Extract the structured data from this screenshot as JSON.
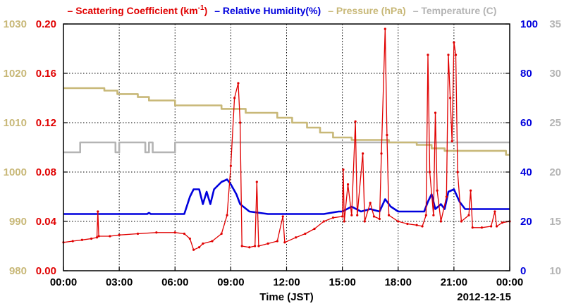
{
  "chart_data": {
    "type": "line",
    "xlabel": "Time (JST)",
    "date_label": "2012-12-15",
    "x_ticks": [
      "00:00",
      "03:00",
      "06:00",
      "09:00",
      "12:00",
      "15:00",
      "18:00",
      "21:00",
      "00:00"
    ],
    "x_range_hours": [
      0,
      24
    ],
    "grid": true,
    "legend_position": "top",
    "axes": [
      {
        "id": "scatter",
        "side": "left-inner",
        "color": "#e00000",
        "range": [
          0,
          0.2
        ],
        "ticks": [
          "0.00",
          "0.04",
          "0.08",
          "0.12",
          "0.16",
          "0.20"
        ]
      },
      {
        "id": "pressure",
        "side": "left-outer",
        "color": "#c8b878",
        "range": [
          980,
          1030
        ],
        "ticks": [
          "980",
          "990",
          "1000",
          "1010",
          "1020",
          "1030"
        ]
      },
      {
        "id": "humidity",
        "side": "right-inner",
        "color": "#0000dd",
        "range": [
          0,
          100
        ],
        "ticks": [
          "0",
          "20",
          "40",
          "60",
          "80",
          "100"
        ]
      },
      {
        "id": "temperature",
        "side": "right-outer",
        "color": "#b4b4b4",
        "range": [
          10,
          35
        ],
        "ticks": [
          "10",
          "15",
          "20",
          "25",
          "30",
          "35"
        ]
      }
    ],
    "series": [
      {
        "name": "Scattering Coefficient (km",
        "name_sup": "-1",
        "name_end": ")",
        "axis": "scatter",
        "color": "#e00000",
        "markers": true,
        "points": [
          [
            0,
            0.023
          ],
          [
            0.5,
            0.024
          ],
          [
            1,
            0.025
          ],
          [
            1.5,
            0.026
          ],
          [
            1.8,
            0.027
          ],
          [
            1.85,
            0.048
          ],
          [
            1.9,
            0.028
          ],
          [
            2.5,
            0.028
          ],
          [
            3,
            0.029
          ],
          [
            4,
            0.03
          ],
          [
            5,
            0.031
          ],
          [
            6,
            0.031
          ],
          [
            6.5,
            0.03
          ],
          [
            6.8,
            0.026
          ],
          [
            7,
            0.017
          ],
          [
            7.3,
            0.019
          ],
          [
            7.5,
            0.022
          ],
          [
            8,
            0.024
          ],
          [
            8.5,
            0.03
          ],
          [
            8.8,
            0.045
          ],
          [
            9,
            0.085
          ],
          [
            9.2,
            0.14
          ],
          [
            9.4,
            0.152
          ],
          [
            9.5,
            0.12
          ],
          [
            9.6,
            0.02
          ],
          [
            10,
            0.019
          ],
          [
            10.3,
            0.02
          ],
          [
            10.4,
            0.072
          ],
          [
            10.5,
            0.02
          ],
          [
            11,
            0.022
          ],
          [
            11.5,
            0.024
          ],
          [
            11.8,
            0.044
          ],
          [
            11.9,
            0.023
          ],
          [
            12.5,
            0.027
          ],
          [
            13,
            0.03
          ],
          [
            13.5,
            0.034
          ],
          [
            14,
            0.04
          ],
          [
            14.5,
            0.043
          ],
          [
            15,
            0.044
          ],
          [
            15.05,
            0.082
          ],
          [
            15.1,
            0.04
          ],
          [
            15.3,
            0.07
          ],
          [
            15.5,
            0.045
          ],
          [
            15.7,
            0.121
          ],
          [
            15.8,
            0.045
          ],
          [
            16.1,
            0.095
          ],
          [
            16.2,
            0.04
          ],
          [
            16.5,
            0.055
          ],
          [
            16.7,
            0.044
          ],
          [
            17,
            0.042
          ],
          [
            17.1,
            0.095
          ],
          [
            17.3,
            0.196
          ],
          [
            17.4,
            0.11
          ],
          [
            17.5,
            0.045
          ],
          [
            18,
            0.04
          ],
          [
            18.5,
            0.038
          ],
          [
            19,
            0.037
          ],
          [
            19.3,
            0.036
          ],
          [
            19.5,
            0.045
          ],
          [
            19.6,
            0.175
          ],
          [
            19.7,
            0.08
          ],
          [
            19.9,
            0.045
          ],
          [
            20,
            0.128
          ],
          [
            20.1,
            0.065
          ],
          [
            20.3,
            0.04
          ],
          [
            20.6,
            0.06
          ],
          [
            20.7,
            0.175
          ],
          [
            20.8,
            0.14
          ],
          [
            20.9,
            0.105
          ],
          [
            21,
            0.185
          ],
          [
            21.1,
            0.175
          ],
          [
            21.2,
            0.08
          ],
          [
            21.4,
            0.04
          ],
          [
            21.8,
            0.045
          ],
          [
            21.9,
            0.065
          ],
          [
            22,
            0.035
          ],
          [
            22.5,
            0.035
          ],
          [
            23,
            0.036
          ],
          [
            23.2,
            0.048
          ],
          [
            23.3,
            0.036
          ],
          [
            23.6,
            0.039
          ],
          [
            24,
            0.04
          ]
        ]
      },
      {
        "name": "Relative Humidity(%)",
        "axis": "humidity",
        "color": "#0000dd",
        "markers": false,
        "points": [
          [
            0,
            23
          ],
          [
            4.5,
            23
          ],
          [
            4.6,
            23.5
          ],
          [
            4.7,
            23
          ],
          [
            6.5,
            23
          ],
          [
            6.8,
            30
          ],
          [
            7,
            33
          ],
          [
            7.3,
            33
          ],
          [
            7.5,
            27
          ],
          [
            7.7,
            32
          ],
          [
            7.9,
            27
          ],
          [
            8.1,
            33
          ],
          [
            8.5,
            36
          ],
          [
            8.8,
            37
          ],
          [
            9,
            35
          ],
          [
            9.3,
            31
          ],
          [
            9.5,
            27
          ],
          [
            10,
            24
          ],
          [
            11,
            23
          ],
          [
            14,
            23
          ],
          [
            14.8,
            24
          ],
          [
            15,
            24
          ],
          [
            15.5,
            26
          ],
          [
            16,
            24
          ],
          [
            16.5,
            25
          ],
          [
            17,
            24
          ],
          [
            17.3,
            29
          ],
          [
            17.6,
            26
          ],
          [
            18,
            24
          ],
          [
            19,
            24
          ],
          [
            19.4,
            24
          ],
          [
            19.6,
            28
          ],
          [
            19.8,
            31
          ],
          [
            20,
            25
          ],
          [
            20.3,
            27
          ],
          [
            20.5,
            25
          ],
          [
            20.7,
            32
          ],
          [
            21,
            33
          ],
          [
            21.3,
            28
          ],
          [
            21.6,
            25
          ],
          [
            22,
            25
          ],
          [
            24,
            25
          ]
        ]
      },
      {
        "name": "Pressure (hPa)",
        "axis": "pressure",
        "color": "#c8b878",
        "markers": false,
        "points": [
          [
            0,
            1017
          ],
          [
            2.2,
            1017
          ],
          [
            2.2,
            1016.5
          ],
          [
            2.9,
            1016.5
          ],
          [
            2.9,
            1015.8
          ],
          [
            4,
            1015.8
          ],
          [
            4,
            1015.2
          ],
          [
            4.6,
            1015.2
          ],
          [
            4.6,
            1014.5
          ],
          [
            6,
            1014.5
          ],
          [
            6,
            1013.5
          ],
          [
            8.5,
            1013.5
          ],
          [
            8.5,
            1012.8
          ],
          [
            9.8,
            1012.8
          ],
          [
            9.8,
            1012
          ],
          [
            11.5,
            1012
          ],
          [
            11.5,
            1011
          ],
          [
            12.3,
            1011
          ],
          [
            12.3,
            1010
          ],
          [
            13.1,
            1010
          ],
          [
            13.1,
            1009
          ],
          [
            13.8,
            1009
          ],
          [
            13.8,
            1008
          ],
          [
            14.5,
            1008
          ],
          [
            14.5,
            1007
          ],
          [
            15.5,
            1007
          ],
          [
            15.5,
            1006.5
          ],
          [
            17.5,
            1006.5
          ],
          [
            17.5,
            1006
          ],
          [
            19,
            1006
          ],
          [
            19,
            1005.5
          ],
          [
            19.8,
            1005.5
          ],
          [
            19.8,
            1004.8
          ],
          [
            20.5,
            1004.8
          ],
          [
            20.5,
            1004.3
          ],
          [
            23.8,
            1004.3
          ],
          [
            23.8,
            1003.5
          ],
          [
            24,
            1003.5
          ]
        ]
      },
      {
        "name": "Temperature (C)",
        "axis": "temperature",
        "color": "#b4b4b4",
        "markers": false,
        "points": [
          [
            0,
            22
          ],
          [
            0.9,
            22
          ],
          [
            0.9,
            23
          ],
          [
            2.8,
            23
          ],
          [
            2.8,
            22
          ],
          [
            3,
            22
          ],
          [
            3,
            23
          ],
          [
            4.4,
            23
          ],
          [
            4.4,
            22
          ],
          [
            4.6,
            22
          ],
          [
            4.6,
            23
          ],
          [
            4.8,
            23
          ],
          [
            4.8,
            22
          ],
          [
            6,
            22
          ],
          [
            6,
            23
          ],
          [
            24,
            23
          ]
        ]
      }
    ]
  }
}
